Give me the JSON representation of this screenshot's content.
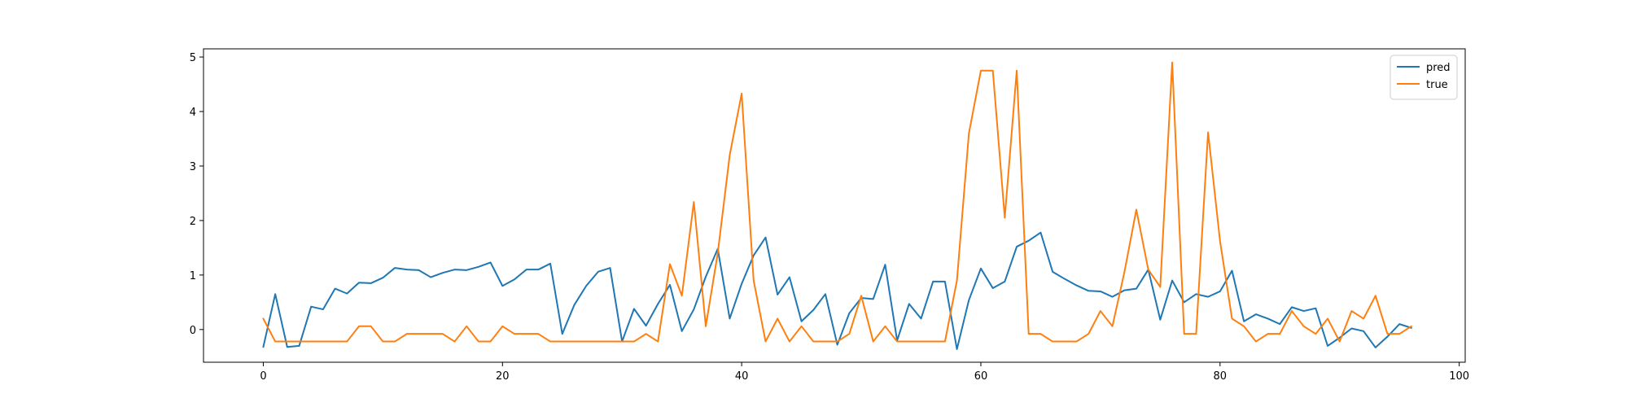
{
  "chart_data": {
    "type": "line",
    "title": "",
    "xlabel": "",
    "ylabel": "",
    "xlim": [
      -5,
      100.5
    ],
    "ylim": [
      -0.6,
      5.15
    ],
    "xticks": [
      0,
      20,
      40,
      60,
      80,
      100
    ],
    "yticks": [
      0,
      1,
      2,
      3,
      4,
      5
    ],
    "grid": false,
    "legend_position": "top-right",
    "series": [
      {
        "name": "pred",
        "color": "#1f77b4",
        "x": [
          0,
          1,
          2,
          3,
          4,
          5,
          6,
          7,
          8,
          9,
          10,
          11,
          12,
          13,
          14,
          15,
          16,
          17,
          18,
          19,
          20,
          21,
          22,
          23,
          24,
          25,
          26,
          27,
          28,
          29,
          30,
          31,
          32,
          33,
          34,
          35,
          36,
          37,
          38,
          39,
          40,
          41,
          42,
          43,
          44,
          45,
          46,
          47,
          48,
          49,
          50,
          51,
          52,
          53,
          54,
          55,
          56,
          57,
          58,
          59,
          60,
          61,
          62,
          63,
          64,
          65,
          66,
          67,
          68,
          69,
          70,
          71,
          72,
          73,
          74,
          75,
          76,
          77,
          78,
          79,
          80,
          81,
          82,
          83,
          84,
          85,
          86,
          87,
          88,
          89,
          90,
          91,
          92,
          93,
          94,
          95,
          96
        ],
        "values": [
          -0.32,
          0.65,
          -0.32,
          -0.3,
          0.42,
          0.37,
          0.75,
          0.66,
          0.86,
          0.85,
          0.95,
          1.13,
          1.1,
          1.09,
          0.96,
          1.04,
          1.1,
          1.09,
          1.15,
          1.23,
          0.8,
          0.92,
          1.1,
          1.1,
          1.21,
          -0.08,
          0.45,
          0.8,
          1.06,
          1.13,
          -0.22,
          0.38,
          0.07,
          0.47,
          0.82,
          -0.03,
          0.37,
          0.97,
          1.48,
          0.2,
          0.84,
          1.36,
          1.69,
          0.64,
          0.96,
          0.15,
          0.36,
          0.65,
          -0.28,
          0.3,
          0.58,
          0.56,
          1.19,
          -0.2,
          0.47,
          0.2,
          0.88,
          0.88,
          -0.36,
          0.54,
          1.12,
          0.76,
          0.88,
          1.52,
          1.63,
          1.78,
          1.06,
          0.93,
          0.81,
          0.71,
          0.7,
          0.6,
          0.72,
          0.75,
          1.1,
          0.18,
          0.9,
          0.5,
          0.65,
          0.6,
          0.7,
          1.08,
          0.15,
          0.28,
          0.2,
          0.1,
          0.41,
          0.34,
          0.39,
          -0.3,
          -0.15,
          0.02,
          -0.03,
          -0.33,
          -0.13,
          0.1,
          0.03
        ]
      },
      {
        "name": "true",
        "color": "#ff7f0e",
        "x": [
          0,
          1,
          2,
          3,
          4,
          5,
          6,
          7,
          8,
          9,
          10,
          11,
          12,
          13,
          14,
          15,
          16,
          17,
          18,
          19,
          20,
          21,
          22,
          23,
          24,
          25,
          26,
          27,
          28,
          29,
          30,
          31,
          32,
          33,
          34,
          35,
          36,
          37,
          38,
          39,
          40,
          41,
          42,
          43,
          44,
          45,
          46,
          47,
          48,
          49,
          50,
          51,
          52,
          53,
          54,
          55,
          56,
          57,
          58,
          59,
          60,
          61,
          62,
          63,
          64,
          65,
          66,
          67,
          68,
          69,
          70,
          71,
          72,
          73,
          74,
          75,
          76,
          77,
          78,
          79,
          80,
          81,
          82,
          83,
          84,
          85,
          86,
          87,
          88,
          89,
          90,
          91,
          92,
          93,
          94,
          95,
          96
        ],
        "values": [
          0.2,
          -0.22,
          -0.22,
          -0.22,
          -0.22,
          -0.22,
          -0.22,
          -0.22,
          0.06,
          0.06,
          -0.22,
          -0.22,
          -0.08,
          -0.08,
          -0.08,
          -0.08,
          -0.22,
          0.06,
          -0.22,
          -0.22,
          0.06,
          -0.08,
          -0.08,
          -0.08,
          -0.22,
          -0.22,
          -0.22,
          -0.22,
          -0.22,
          -0.22,
          -0.22,
          -0.22,
          -0.08,
          -0.22,
          1.2,
          0.62,
          2.34,
          0.06,
          1.4,
          3.2,
          4.33,
          0.9,
          -0.22,
          0.2,
          -0.22,
          0.06,
          -0.22,
          -0.22,
          -0.22,
          -0.08,
          0.62,
          -0.22,
          0.06,
          -0.22,
          -0.22,
          -0.22,
          -0.22,
          -0.22,
          0.9,
          3.6,
          4.75,
          4.75,
          2.05,
          4.75,
          -0.08,
          -0.08,
          -0.22,
          -0.22,
          -0.22,
          -0.08,
          0.34,
          0.06,
          1.05,
          2.2,
          1.1,
          0.78,
          4.9,
          -0.08,
          -0.08,
          3.62,
          1.62,
          0.2,
          0.06,
          -0.22,
          -0.08,
          -0.08,
          0.34,
          0.06,
          -0.08,
          0.2,
          -0.22,
          0.34,
          0.2,
          0.62,
          -0.08,
          -0.08,
          0.06
        ]
      }
    ]
  }
}
